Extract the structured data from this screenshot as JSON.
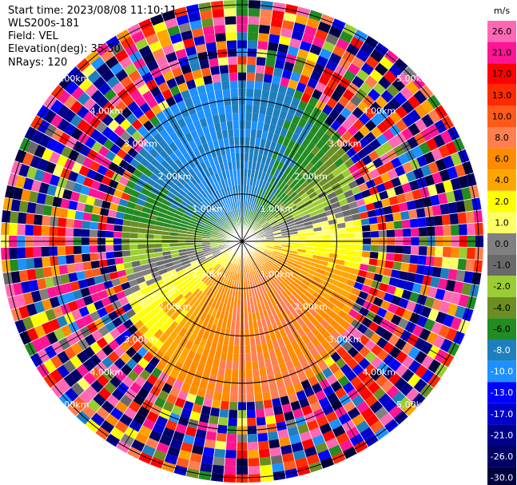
{
  "header": {
    "start_time": "Start time: 2023/08/08 11:10:11",
    "instrument": "WLS200s-181",
    "field": "Field: VEL",
    "elevation": "Elevation(deg): 35.30",
    "nrays": "NRays: 120"
  },
  "colorbar": {
    "unit": "m/s",
    "levels": [
      "26.0",
      "21.0",
      "17.0",
      "13.0",
      "10.0",
      "8.0",
      "6.0",
      "4.0",
      "2.0",
      "1.0",
      "0.0",
      "-1.0",
      "-2.0",
      "-4.0",
      "-6.0",
      "-8.0",
      "-10.0",
      "-13.0",
      "-17.0",
      "-21.0",
      "-26.0",
      "-30.0"
    ],
    "colors": [
      "#ff69b4",
      "#ff1493",
      "#ff0000",
      "#ff2a00",
      "#ff5a1a",
      "#ff7f50",
      "#ff8c00",
      "#ffa500",
      "#ffff00",
      "#ffff66",
      "#808080",
      "#696969",
      "#9acd32",
      "#6b8e23",
      "#228b22",
      "#1e7fbf",
      "#1e90ff",
      "#0000ff",
      "#0000cd",
      "#00008b",
      "#000066",
      "#000040"
    ]
  },
  "chart_data": {
    "type": "ppi",
    "field": "VEL",
    "units": "m/s",
    "nrays": 120,
    "ring_labels": [
      "1.00km",
      "2.00km",
      "3.00km",
      "4.00km",
      "5.00km"
    ],
    "ring_km": [
      1,
      2,
      3,
      4,
      5
    ],
    "max_range_km": 5.0,
    "gates_per_ray": 30,
    "pattern": "Near-field coherent wind: north sector negative (toward, blue/green ~ -6 to -10 m/s), south sector positive (away, orange/red ~ 6 to 13 m/s), east yellow, west gray near 0; beyond ~3-4 km random noisy values across all colors."
  }
}
